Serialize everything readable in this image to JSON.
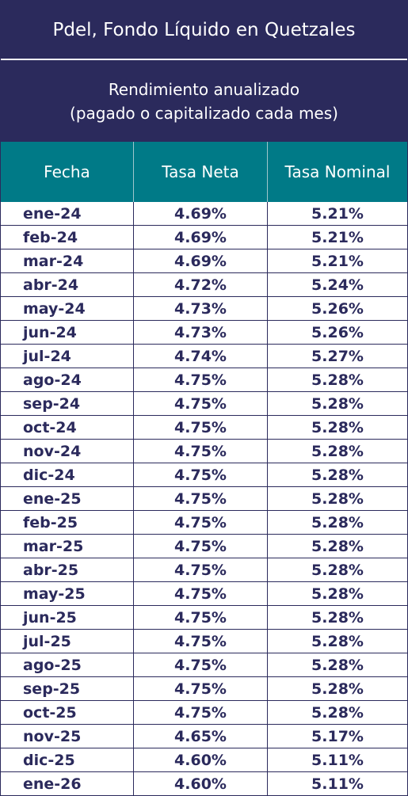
{
  "title": "Pdel, Fondo Líquido en Quetzales",
  "subtitle_line1": "Rendimiento anualizado",
  "subtitle_line2": "(pagado o capitalizado cada mes)",
  "columns": [
    "Fecha",
    "Tasa Neta",
    "Tasa Nominal"
  ],
  "rows": [
    [
      "ene-24",
      "4.69%",
      "5.21%"
    ],
    [
      "feb-24",
      "4.69%",
      "5.21%"
    ],
    [
      "mar-24",
      "4.69%",
      "5.21%"
    ],
    [
      "abr-24",
      "4.72%",
      "5.24%"
    ],
    [
      "may-24",
      "4.73%",
      "5.26%"
    ],
    [
      "jun-24",
      "4.73%",
      "5.26%"
    ],
    [
      "jul-24",
      "4.74%",
      "5.27%"
    ],
    [
      "ago-24",
      "4.75%",
      "5.28%"
    ],
    [
      "sep-24",
      "4.75%",
      "5.28%"
    ],
    [
      "oct-24",
      "4.75%",
      "5.28%"
    ],
    [
      "nov-24",
      "4.75%",
      "5.28%"
    ],
    [
      "dic-24",
      "4.75%",
      "5.28%"
    ],
    [
      "ene-25",
      "4.75%",
      "5.28%"
    ],
    [
      "feb-25",
      "4.75%",
      "5.28%"
    ],
    [
      "mar-25",
      "4.75%",
      "5.28%"
    ],
    [
      "abr-25",
      "4.75%",
      "5.28%"
    ],
    [
      "may-25",
      "4.75%",
      "5.28%"
    ],
    [
      "jun-25",
      "4.75%",
      "5.28%"
    ],
    [
      "jul-25",
      "4.75%",
      "5.28%"
    ],
    [
      "ago-25",
      "4.75%",
      "5.28%"
    ],
    [
      "sep-25",
      "4.75%",
      "5.28%"
    ],
    [
      "oct-25",
      "4.75%",
      "5.28%"
    ],
    [
      "nov-25",
      "4.65%",
      "5.17%"
    ],
    [
      "dic-25",
      "4.60%",
      "5.11%"
    ],
    [
      "ene-26",
      "4.60%",
      "5.11%"
    ]
  ],
  "colors": {
    "title_bg": "#2b2a5c",
    "header_bg": "#007a87",
    "text": "#2b2a5c"
  }
}
